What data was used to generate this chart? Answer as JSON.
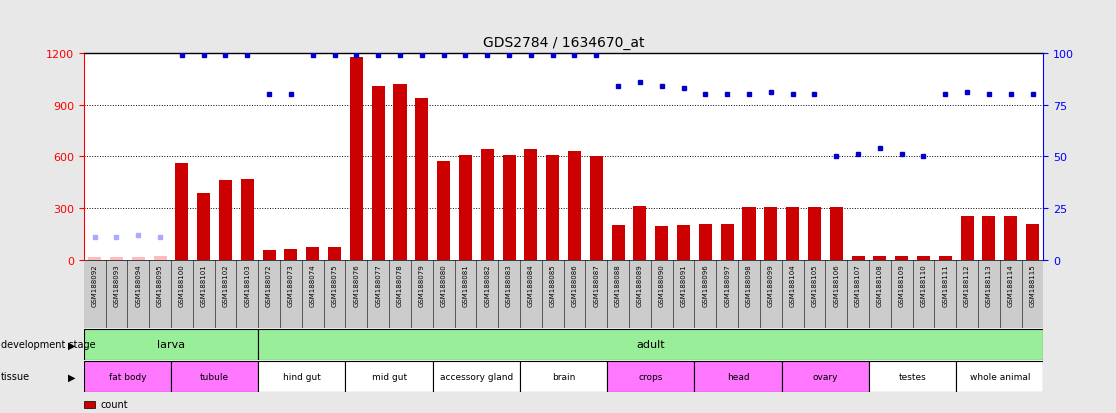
{
  "title": "GDS2784 / 1634670_at",
  "samples": [
    "GSM188092",
    "GSM188093",
    "GSM188094",
    "GSM188095",
    "GSM188100",
    "GSM188101",
    "GSM188102",
    "GSM188103",
    "GSM188072",
    "GSM188073",
    "GSM188074",
    "GSM188075",
    "GSM188076",
    "GSM188077",
    "GSM188078",
    "GSM188079",
    "GSM188080",
    "GSM188081",
    "GSM188082",
    "GSM188083",
    "GSM188084",
    "GSM188085",
    "GSM188086",
    "GSM188087",
    "GSM188088",
    "GSM188089",
    "GSM188090",
    "GSM188091",
    "GSM188096",
    "GSM188097",
    "GSM188098",
    "GSM188099",
    "GSM188104",
    "GSM188105",
    "GSM188106",
    "GSM188107",
    "GSM188108",
    "GSM188109",
    "GSM188110",
    "GSM188111",
    "GSM188112",
    "GSM188113",
    "GSM188114",
    "GSM188115"
  ],
  "count_values": [
    18,
    18,
    18,
    20,
    560,
    390,
    460,
    470,
    55,
    65,
    75,
    75,
    1175,
    1010,
    1020,
    940,
    570,
    610,
    640,
    610,
    640,
    610,
    630,
    600,
    200,
    310,
    195,
    200,
    205,
    210,
    305,
    305,
    305,
    305,
    305,
    25,
    25,
    25,
    25,
    25,
    255,
    255,
    255,
    205
  ],
  "rank_values": [
    11,
    11,
    12,
    11,
    99,
    99,
    99,
    99,
    80,
    80,
    99,
    99,
    99,
    99,
    99,
    99,
    99,
    99,
    99,
    99,
    99,
    99,
    99,
    99,
    84,
    86,
    84,
    83,
    80,
    80,
    80,
    81,
    80,
    80,
    50,
    51,
    54,
    51,
    50,
    80,
    81,
    80,
    80,
    80
  ],
  "absent_flags": [
    true,
    true,
    true,
    true,
    false,
    false,
    false,
    false,
    false,
    false,
    false,
    false,
    false,
    false,
    false,
    false,
    false,
    false,
    false,
    false,
    false,
    false,
    false,
    false,
    false,
    false,
    false,
    false,
    false,
    false,
    false,
    false,
    false,
    false,
    false,
    false,
    false,
    false,
    false,
    false,
    false,
    false,
    false,
    false
  ],
  "dev_stage_groups": [
    {
      "label": "larva",
      "start": 0,
      "end": 8,
      "color": "#99EE99"
    },
    {
      "label": "adult",
      "start": 8,
      "end": 44,
      "color": "#99EE99"
    }
  ],
  "tissue_groups": [
    {
      "label": "fat body",
      "start": 0,
      "end": 4,
      "color": "#FF77FF"
    },
    {
      "label": "tubule",
      "start": 4,
      "end": 8,
      "color": "#FF77FF"
    },
    {
      "label": "hind gut",
      "start": 8,
      "end": 12,
      "color": "#FFFFFF"
    },
    {
      "label": "mid gut",
      "start": 12,
      "end": 16,
      "color": "#FFFFFF"
    },
    {
      "label": "accessory gland",
      "start": 16,
      "end": 20,
      "color": "#FFFFFF"
    },
    {
      "label": "brain",
      "start": 20,
      "end": 24,
      "color": "#FFFFFF"
    },
    {
      "label": "crops",
      "start": 24,
      "end": 28,
      "color": "#FF77FF"
    },
    {
      "label": "head",
      "start": 28,
      "end": 32,
      "color": "#FF77FF"
    },
    {
      "label": "ovary",
      "start": 32,
      "end": 36,
      "color": "#FF77FF"
    },
    {
      "label": "testes",
      "start": 36,
      "end": 40,
      "color": "#FFFFFF"
    },
    {
      "label": "whole animal",
      "start": 40,
      "end": 44,
      "color": "#FFFFFF"
    }
  ],
  "ylim_left": [
    0,
    1200
  ],
  "ylim_right": [
    0,
    100
  ],
  "yticks_left": [
    0,
    300,
    600,
    900,
    1200
  ],
  "yticks_right": [
    0,
    25,
    50,
    75,
    100
  ],
  "bar_color": "#CC0000",
  "dot_color": "#0000CC",
  "absent_bar_color": "#FFBBBB",
  "absent_dot_color": "#AAAAFF",
  "background_color": "#E8E8E8",
  "plot_bg": "#FFFFFF",
  "xlabel_bg": "#CCCCCC"
}
